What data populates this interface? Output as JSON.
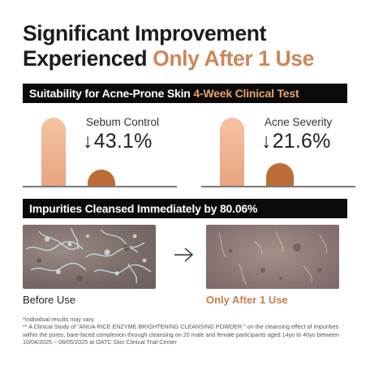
{
  "headline": {
    "line1": "Significant Improvement",
    "line2_lead": "Experienced ",
    "line2_accent": "Only After 1 Use",
    "accent_color": "#c9885a"
  },
  "clinical_band": {
    "lead": "Suitability for Acne-Prone Skin ",
    "accent": "4-Week Clinical Test",
    "accent_color": "#e8a36e"
  },
  "metrics": [
    {
      "label": "Sebum Control",
      "arrow": "↓",
      "value": "43.1%",
      "reduction": 0.431
    },
    {
      "label": "Acne Severity",
      "arrow": "↓",
      "value": "21.6%",
      "reduction": 0.216
    }
  ],
  "impurities_band": {
    "text": "Impurities Cleansed Immediately by 80.06%"
  },
  "comparison": {
    "before_caption": "Before Use",
    "after_caption": "Only After 1 Use",
    "after_color": "#c97f4d",
    "arrow_icon": "right-arrow-icon"
  },
  "footnotes": {
    "line1": "*Individual results may vary.",
    "line2": "** A Clinical Study of \"ANUA RICE ENZYME BRIGHTENING CLEANSING POWDER \" on the cleansing effect of impurities within the pores, bare-faced complexion through cleansing on 20 male and female participants aged 14yo to 40yo between 10/04/2025 ~ 08/05/2025 at OATC Skin Clinical Trial Center"
  }
}
